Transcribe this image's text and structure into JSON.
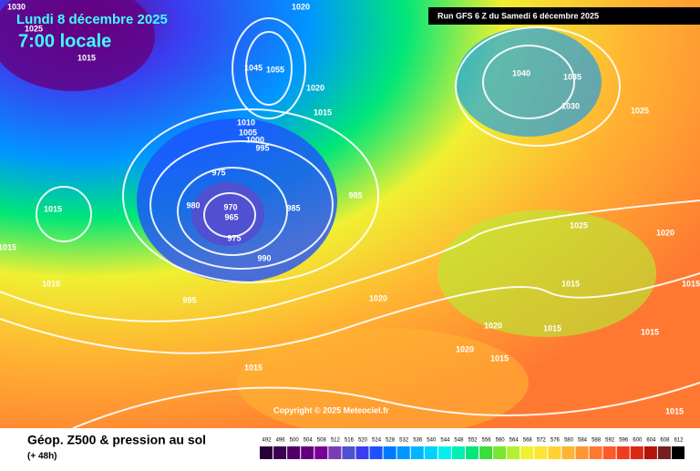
{
  "header": {
    "date": "Lundi 8 décembre 2025",
    "time": "7:00 locale",
    "run": "Run GFS 6 Z du Samedi 6 décembre 2025"
  },
  "copyright": "Copyright © 2025 Meteociel.fr",
  "footer": {
    "title": "Géop. Z500 & pression au sol",
    "lead": "(+ 48h)"
  },
  "scale": {
    "labels": [
      492,
      496,
      500,
      504,
      508,
      512,
      516,
      520,
      524,
      528,
      532,
      536,
      540,
      544,
      548,
      552,
      556,
      560,
      564,
      568,
      572,
      576,
      580,
      584,
      588,
      592,
      596,
      600,
      604,
      608,
      612
    ],
    "colors": [
      "#2a0038",
      "#3c0050",
      "#500068",
      "#640080",
      "#780096",
      "#7a3cb4",
      "#5050d0",
      "#3c3cf0",
      "#1e50ff",
      "#0078ff",
      "#0096ff",
      "#00b4ff",
      "#00d2ff",
      "#00f0f0",
      "#00f0b4",
      "#00e678",
      "#3cdc3c",
      "#78e632",
      "#b4f032",
      "#f0f032",
      "#fae632",
      "#ffd232",
      "#ffb432",
      "#ff9632",
      "#ff7832",
      "#ff5a28",
      "#f03c1e",
      "#dc2814",
      "#b4140a",
      "#781e1e",
      "#000000"
    ]
  },
  "isobar_labels": [
    1030,
    1025,
    1015,
    1020,
    1045,
    1055,
    1020,
    1015,
    1010,
    1005,
    1000,
    995,
    975,
    980,
    970,
    965,
    975,
    985,
    985,
    990,
    1015,
    1015,
    1010,
    995,
    1020,
    1015,
    1040,
    1035,
    1030,
    1025,
    1025,
    1020,
    1015,
    1015,
    1020,
    1015,
    1015,
    1020,
    1015,
    1015
  ]
}
